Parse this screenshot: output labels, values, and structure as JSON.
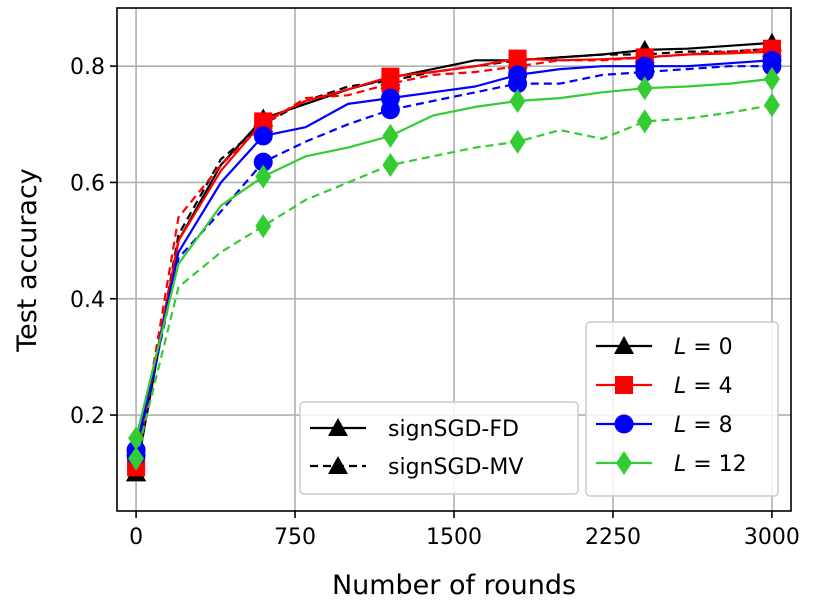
{
  "chart_data": {
    "type": "line",
    "xlabel": "Number of rounds",
    "ylabel": "Test accuracy",
    "xlim": [
      -90,
      3090
    ],
    "ylim": [
      0.035,
      0.9
    ],
    "xticks": [
      0,
      750,
      1500,
      2250,
      3000
    ],
    "xtick_labels": [
      "0",
      "750",
      "1500",
      "2250",
      "3000"
    ],
    "yticks": [
      0.2,
      0.4,
      0.6,
      0.8
    ],
    "ytick_labels": [
      "0.2",
      "0.4",
      "0.6",
      "0.8"
    ],
    "grid": true,
    "colors": {
      "L0": "#000000",
      "L4": "#ff0000",
      "L8": "#0000ff",
      "L12": "#33cc33"
    },
    "legend_method": {
      "placement": "bottom-center",
      "entries": [
        {
          "label": "signSGD-FD",
          "style": "solid",
          "marker": "triangle"
        },
        {
          "label": "signSGD-MV",
          "style": "dashed",
          "marker": "triangle"
        }
      ]
    },
    "legend_L": {
      "placement": "lower-right",
      "entries": [
        {
          "var": "L",
          "eq": " = 0",
          "key": "L0",
          "marker": "triangle"
        },
        {
          "var": "L",
          "eq": " = 4",
          "key": "L4",
          "marker": "square"
        },
        {
          "var": "L",
          "eq": " = 8",
          "key": "L8",
          "marker": "circle"
        },
        {
          "var": "L",
          "eq": " = 12",
          "key": "L12",
          "marker": "diamond"
        }
      ]
    },
    "marker_x": [
      0,
      600,
      1200,
      1800,
      2400,
      3000
    ],
    "series": [
      {
        "name": "signSGD-FD L=0",
        "key": "L0",
        "style": "solid",
        "marker": "triangle",
        "x": [
          0,
          200,
          400,
          600,
          800,
          1000,
          1200,
          1400,
          1600,
          1800,
          2000,
          2200,
          2400,
          2600,
          2800,
          3000
        ],
        "y": [
          0.1,
          0.5,
          0.63,
          0.71,
          0.735,
          0.76,
          0.78,
          0.795,
          0.81,
          0.81,
          0.815,
          0.82,
          0.828,
          0.83,
          0.835,
          0.84
        ]
      },
      {
        "name": "signSGD-MV L=0",
        "key": "L0",
        "style": "dashed",
        "marker": "triangle",
        "x": [
          0,
          200,
          400,
          600,
          800,
          1000,
          1200,
          1400,
          1600,
          1800,
          2000,
          2200,
          2400,
          2600,
          2800,
          3000
        ],
        "y": [
          0.1,
          0.51,
          0.64,
          0.7,
          0.74,
          0.765,
          0.775,
          0.79,
          0.8,
          0.81,
          0.815,
          0.82,
          0.82,
          0.825,
          0.825,
          0.83
        ]
      },
      {
        "name": "signSGD-FD L=4",
        "key": "L4",
        "style": "solid",
        "marker": "square",
        "x": [
          0,
          200,
          400,
          600,
          800,
          1000,
          1200,
          1400,
          1600,
          1800,
          2000,
          2200,
          2400,
          2600,
          2800,
          3000
        ],
        "y": [
          0.12,
          0.5,
          0.62,
          0.705,
          0.74,
          0.76,
          0.782,
          0.79,
          0.8,
          0.813,
          0.81,
          0.812,
          0.815,
          0.82,
          0.822,
          0.825
        ]
      },
      {
        "name": "signSGD-MV L=4",
        "key": "L4",
        "style": "dashed",
        "marker": "square",
        "x": [
          0,
          200,
          400,
          600,
          800,
          1000,
          1200,
          1400,
          1600,
          1800,
          2000,
          2200,
          2400,
          2600,
          2800,
          3000
        ],
        "y": [
          0.11,
          0.54,
          0.63,
          0.7,
          0.745,
          0.75,
          0.77,
          0.785,
          0.79,
          0.8,
          0.81,
          0.81,
          0.815,
          0.82,
          0.825,
          0.83
        ]
      },
      {
        "name": "signSGD-FD L=8",
        "key": "L8",
        "style": "solid",
        "marker": "circle",
        "x": [
          0,
          200,
          400,
          600,
          800,
          1000,
          1200,
          1400,
          1600,
          1800,
          2000,
          2200,
          2400,
          2600,
          2800,
          3000
        ],
        "y": [
          0.14,
          0.48,
          0.6,
          0.68,
          0.695,
          0.735,
          0.745,
          0.755,
          0.765,
          0.785,
          0.795,
          0.8,
          0.8,
          0.8,
          0.805,
          0.81
        ]
      },
      {
        "name": "signSGD-MV L=8",
        "key": "L8",
        "style": "dashed",
        "marker": "circle",
        "x": [
          0,
          200,
          400,
          600,
          800,
          1000,
          1200,
          1400,
          1600,
          1800,
          2000,
          2200,
          2400,
          2600,
          2800,
          3000
        ],
        "y": [
          0.13,
          0.47,
          0.55,
          0.635,
          0.67,
          0.7,
          0.725,
          0.74,
          0.755,
          0.77,
          0.77,
          0.785,
          0.79,
          0.795,
          0.8,
          0.8
        ]
      },
      {
        "name": "signSGD-FD L=12",
        "key": "L12",
        "style": "solid",
        "marker": "diamond",
        "x": [
          0,
          200,
          400,
          600,
          800,
          1000,
          1200,
          1400,
          1600,
          1800,
          2000,
          2200,
          2400,
          2600,
          2800,
          3000
        ],
        "y": [
          0.16,
          0.46,
          0.56,
          0.61,
          0.645,
          0.66,
          0.68,
          0.715,
          0.73,
          0.74,
          0.745,
          0.755,
          0.762,
          0.765,
          0.77,
          0.778
        ]
      },
      {
        "name": "signSGD-MV L=12",
        "key": "L12",
        "style": "dashed",
        "marker": "diamond",
        "x": [
          0,
          200,
          400,
          600,
          800,
          1000,
          1200,
          1400,
          1600,
          1800,
          2000,
          2200,
          2400,
          2600,
          2800,
          3000
        ],
        "y": [
          0.125,
          0.42,
          0.48,
          0.525,
          0.57,
          0.6,
          0.63,
          0.645,
          0.66,
          0.67,
          0.69,
          0.675,
          0.705,
          0.71,
          0.72,
          0.733
        ]
      }
    ]
  }
}
